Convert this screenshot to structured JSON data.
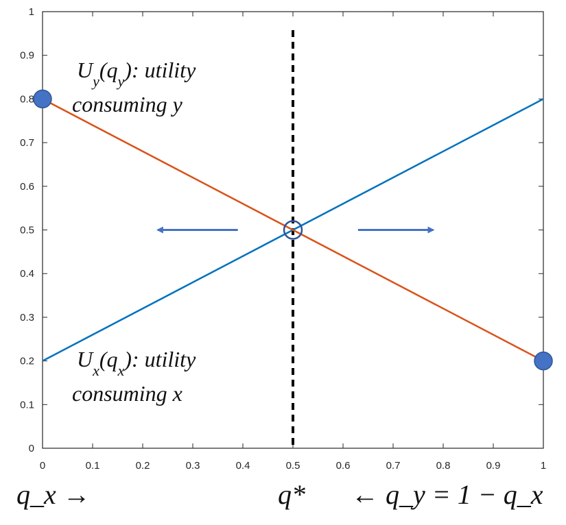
{
  "chart_data": {
    "type": "line",
    "title": "",
    "xlabel": "",
    "ylabel": "",
    "xlim": [
      0,
      1
    ],
    "ylim": [
      0,
      1
    ],
    "x_ticks": [
      "0",
      "0.1",
      "0.2",
      "0.3",
      "0.4",
      "0.5",
      "0.6",
      "0.7",
      "0.8",
      "0.9",
      "1"
    ],
    "y_ticks": [
      "0",
      "0.1",
      "0.2",
      "0.3",
      "0.4",
      "0.5",
      "0.6",
      "0.7",
      "0.8",
      "0.9",
      "1"
    ],
    "grid": false,
    "series": [
      {
        "x": [
          0,
          1
        ],
        "y": [
          0.2,
          0.8
        ],
        "color": "#0072BD"
      },
      {
        "x": [
          0,
          1
        ],
        "y": [
          0.8,
          0.2
        ],
        "color": "#D95319"
      }
    ],
    "markers": {
      "filled": [
        {
          "x": 0,
          "y": 0.8
        },
        {
          "x": 1,
          "y": 0.2
        }
      ],
      "hollow": [
        {
          "x": 0.5,
          "y": 0.5
        }
      ],
      "color": "#4472C4"
    },
    "vertical_line": {
      "x": 0.5,
      "style": "dashed",
      "color": "#000000"
    },
    "arrows": [
      {
        "from_x": 0.39,
        "to_x": 0.23,
        "y": 0.5,
        "direction": "left"
      },
      {
        "from_x": 0.63,
        "to_x": 0.78,
        "y": 0.5,
        "direction": "right"
      }
    ],
    "annotations": {
      "uy_line1": "U_y(q_y): utility",
      "uy_line2": "consuming y",
      "ux_line1": "U_x(q_x): utility",
      "ux_line2": "consuming x"
    }
  },
  "bottom_labels": {
    "left": "q_x →",
    "center": "q*",
    "right": "← q_y = 1 − q_x"
  },
  "colors": {
    "ux_line": "#0072BD",
    "uy_line": "#D95319",
    "marker": "#4472C4",
    "arrow": "#4472C4"
  }
}
